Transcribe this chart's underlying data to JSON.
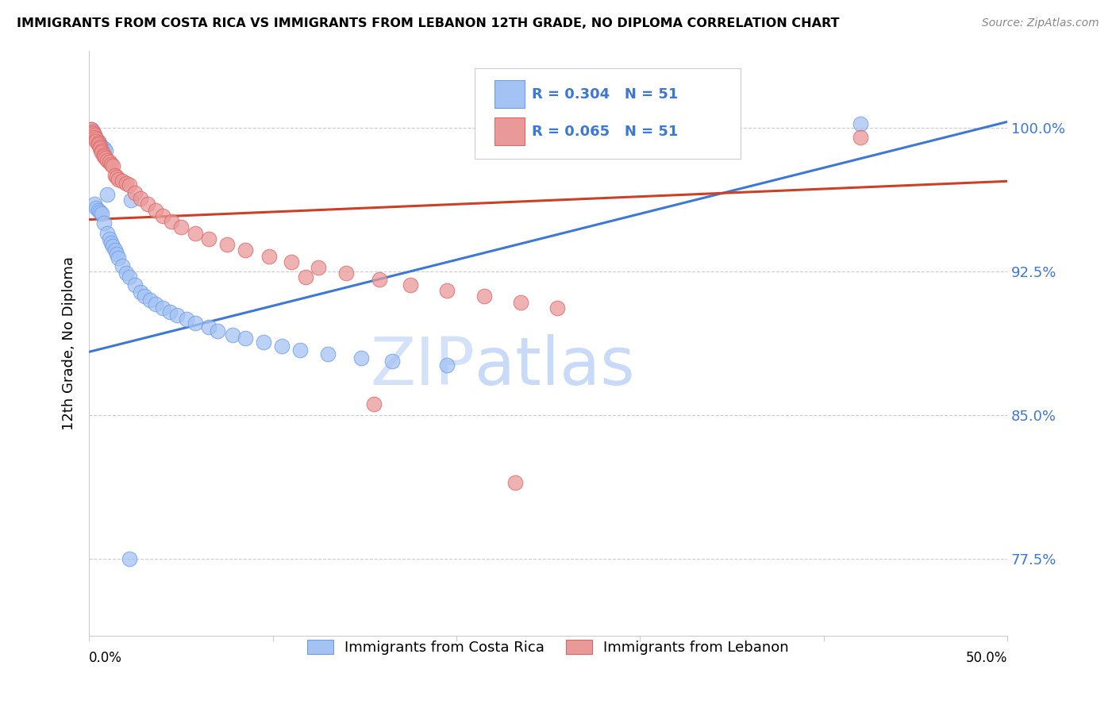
{
  "title": "IMMIGRANTS FROM COSTA RICA VS IMMIGRANTS FROM LEBANON 12TH GRADE, NO DIPLOMA CORRELATION CHART",
  "source": "Source: ZipAtlas.com",
  "ylabel": "12th Grade, No Diploma",
  "ytick_labels": [
    "100.0%",
    "92.5%",
    "85.0%",
    "77.5%"
  ],
  "ytick_values": [
    1.0,
    0.925,
    0.85,
    0.775
  ],
  "xmin": 0.0,
  "xmax": 0.5,
  "ymin": 0.735,
  "ymax": 1.04,
  "R_blue": 0.304,
  "R_pink": 0.065,
  "N_blue": 51,
  "N_pink": 51,
  "blue_color": "#a4c2f4",
  "pink_color": "#ea9999",
  "blue_edge_color": "#6d9eeb",
  "pink_edge_color": "#e06666",
  "blue_line_color": "#3c78d8",
  "pink_line_color": "#cc4125",
  "legend_blue_label": "Immigrants from Costa Rica",
  "legend_pink_label": "Immigrants from Lebanon",
  "watermark_zip": "ZIP",
  "watermark_atlas": "atlas",
  "blue_line_x0": 0.0,
  "blue_line_y0": 0.883,
  "blue_line_x1": 0.5,
  "blue_line_y1": 1.003,
  "pink_line_x0": 0.0,
  "pink_line_y0": 0.952,
  "pink_line_x1": 0.5,
  "pink_line_y1": 0.972,
  "blue_dots_x": [
    0.001,
    0.002,
    0.002,
    0.003,
    0.003,
    0.004,
    0.004,
    0.005,
    0.005,
    0.006,
    0.006,
    0.007,
    0.007,
    0.008,
    0.008,
    0.009,
    0.01,
    0.01,
    0.011,
    0.012,
    0.013,
    0.014,
    0.015,
    0.016,
    0.018,
    0.02,
    0.022,
    0.025,
    0.028,
    0.03,
    0.033,
    0.036,
    0.04,
    0.044,
    0.048,
    0.053,
    0.058,
    0.065,
    0.07,
    0.078,
    0.085,
    0.095,
    0.105,
    0.115,
    0.13,
    0.148,
    0.165,
    0.195,
    0.023,
    0.42,
    0.022
  ],
  "blue_dots_y": [
    0.999,
    0.998,
    0.997,
    0.996,
    0.96,
    0.994,
    0.958,
    0.993,
    0.957,
    0.991,
    0.956,
    0.99,
    0.955,
    0.989,
    0.95,
    0.988,
    0.965,
    0.945,
    0.942,
    0.94,
    0.938,
    0.936,
    0.934,
    0.932,
    0.928,
    0.924,
    0.922,
    0.918,
    0.914,
    0.912,
    0.91,
    0.908,
    0.906,
    0.904,
    0.902,
    0.9,
    0.898,
    0.896,
    0.894,
    0.892,
    0.89,
    0.888,
    0.886,
    0.884,
    0.882,
    0.88,
    0.878,
    0.876,
    0.962,
    1.002,
    0.775
  ],
  "pink_dots_x": [
    0.001,
    0.002,
    0.002,
    0.003,
    0.003,
    0.004,
    0.004,
    0.005,
    0.005,
    0.006,
    0.006,
    0.007,
    0.007,
    0.008,
    0.008,
    0.009,
    0.01,
    0.011,
    0.012,
    0.013,
    0.014,
    0.015,
    0.016,
    0.018,
    0.02,
    0.022,
    0.025,
    0.028,
    0.032,
    0.036,
    0.04,
    0.045,
    0.05,
    0.058,
    0.065,
    0.075,
    0.085,
    0.098,
    0.11,
    0.125,
    0.14,
    0.158,
    0.175,
    0.195,
    0.215,
    0.235,
    0.255,
    0.118,
    0.155,
    0.232,
    0.42
  ],
  "pink_dots_y": [
    0.999,
    0.998,
    0.997,
    0.996,
    0.995,
    0.994,
    0.993,
    0.992,
    0.991,
    0.99,
    0.989,
    0.988,
    0.987,
    0.986,
    0.985,
    0.984,
    0.983,
    0.982,
    0.981,
    0.98,
    0.975,
    0.974,
    0.973,
    0.972,
    0.971,
    0.97,
    0.966,
    0.963,
    0.96,
    0.957,
    0.954,
    0.951,
    0.948,
    0.945,
    0.942,
    0.939,
    0.936,
    0.933,
    0.93,
    0.927,
    0.924,
    0.921,
    0.918,
    0.915,
    0.912,
    0.909,
    0.906,
    0.922,
    0.856,
    0.815,
    0.995
  ]
}
